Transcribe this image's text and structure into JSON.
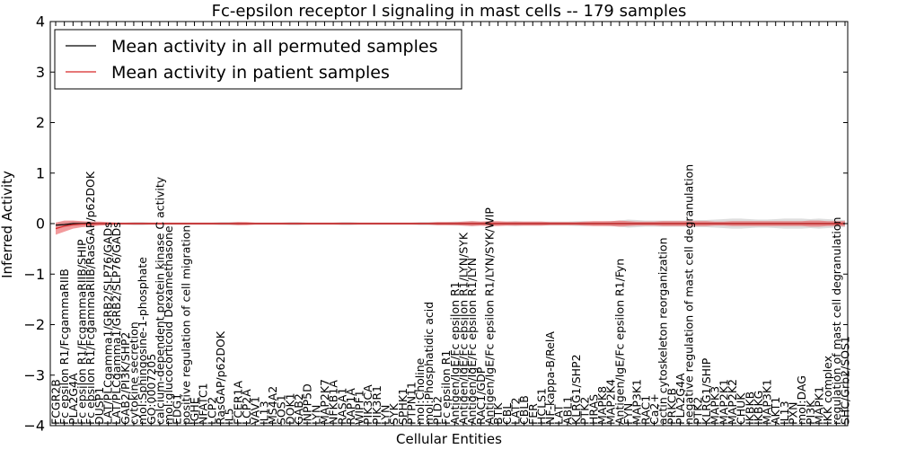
{
  "chart_data": {
    "type": "line",
    "title": "Fc-epsilon receptor I signaling in mast cells -- 179 samples",
    "xlabel": "Cellular Entities",
    "ylabel": "Inferred Activity",
    "ylim": [
      -4,
      4
    ],
    "yticks": [
      -4,
      -3,
      -2,
      -1,
      0,
      1,
      2,
      3,
      4
    ],
    "grid": false,
    "legend_position": "top-left",
    "categories": [
      "FCGR2B",
      "Fc epsilon R1/FcgammaRIIB",
      "PLA2G4A",
      "Fc epsilon R1/FcgammaRIIB/SHIP",
      "Fc epsilon R1/FcgammaRIIB/RasGAP/p62DOK",
      "DUSP1",
      "LAT/PLCgamma1/GRB2/SLP76/GADs",
      "LAT/PLCgamma1/GRB2/SLP76/GADs",
      "GAB2/PI3K/SHP2",
      "cytokine secretion",
      "mol:Sphingosine-1-phosphate",
      "GO:0007205",
      "calcium-dependent protein kinase C activity",
      "mol:glucocorticoid Dexamethasone",
      "EDG1",
      "positive regulation of cell migration",
      "IGHE",
      "NFATC1",
      "LCP2",
      "RasGAP/p62DOK",
      "IL5",
      "FCER1A",
      "LCP2A",
      "VAV1",
      "IL13",
      "MS4A2",
      "SOS1",
      "DOK1",
      "GAB2",
      "INPP5D",
      "LYN",
      "MAP2K7",
      "NFKB1A",
      "RASA1",
      "RAP1A",
      "WIPF1",
      "PIK3CA",
      "PIK3R1",
      "LYN",
      "SYK",
      "SPHK1",
      "PTPN11",
      "mol:Choline",
      "mol:Phosphatidic acid",
      "PLD2",
      "Fc epsilon R1",
      "Antigen/IgE/Fc epsilon R1",
      "Antigen/IgE/Fc epsilon R1/LYN/SYK",
      "Antigen/IgE/Fc epsilon R1/LYN",
      "RAC1/GDP",
      "Antigen/IgE/Fc epsilon R1/LYN/SYK/WIP",
      "BTK",
      "CBL",
      "LAT2",
      "CBLB",
      "FER",
      "HCLS1",
      "NF-kappa-B/RelA",
      "LAT",
      "ABL1",
      "KLRG1/SHP2",
      "PTK2",
      "HRAS",
      "MAPK8",
      "MAP2K4",
      "Antigen/IgE/Fc epsilon R1/Fyn",
      "FYN",
      "MAP3K1",
      "RAC1",
      "Ca2+",
      "actin cytoskeleton reorganization",
      "PRKCB",
      "PLA2G4A",
      "negative regulation of mast cell degranulation",
      "PTK2",
      "KLRG1/SHIP",
      "MAPK3",
      "MAP2K1",
      "MAP2K2",
      "CHUK",
      "IKBKB",
      "IKBKG",
      "MAP3K1",
      "AKT1",
      "IL13",
      "PXN",
      "mol:DAG",
      "PI3K",
      "MAPK1",
      "IKK complex",
      "regulation of mast cell degranulation",
      "SHC/Grb2/SOS1"
    ],
    "series": [
      {
        "name": "Mean activity in all permuted samples",
        "color": "#000000",
        "values": [
          -0.03,
          -0.02,
          0.0,
          0.0,
          0.0,
          0.0,
          0.0,
          0.0,
          0.0,
          0.0,
          0.0,
          0.0,
          0.0,
          0.0,
          0.0,
          0.0,
          0.0,
          0.0,
          0.0,
          0.0,
          0.0,
          0.0,
          0.0,
          0.0,
          0.0,
          0.0,
          0.0,
          0.0,
          0.0,
          0.0,
          0.0,
          0.0,
          0.0,
          0.0,
          0.0,
          0.0,
          0.0,
          0.0,
          0.0,
          0.0,
          0.0,
          0.0,
          0.0,
          0.0,
          0.0,
          0.0,
          0.0,
          0.0,
          0.0,
          0.0,
          0.0,
          0.0,
          0.0,
          0.0,
          0.0,
          0.0,
          0.0,
          0.0,
          0.0,
          0.0,
          0.0,
          0.0,
          0.0,
          0.0,
          0.0,
          0.0,
          0.0,
          0.0,
          0.0,
          0.0,
          0.0,
          0.0,
          0.0,
          0.0,
          0.0,
          0.0,
          0.0,
          0.0,
          0.0,
          0.0,
          0.0,
          0.0,
          0.0,
          0.0,
          0.0,
          0.0,
          0.0,
          0.0,
          0.0,
          0.0,
          0.0,
          0.0
        ]
      },
      {
        "name": "Mean activity in patient samples",
        "color": "#d62728",
        "values": [
          -0.1,
          -0.05,
          -0.02,
          -0.01,
          -0.01,
          0.0,
          0.0,
          0.0,
          0.0,
          0.0,
          0.0,
          0.0,
          0.0,
          0.0,
          0.0,
          0.0,
          0.0,
          0.0,
          0.0,
          0.0,
          0.0,
          0.0,
          0.0,
          0.0,
          0.0,
          0.0,
          0.0,
          0.0,
          0.0,
          0.0,
          0.0,
          0.0,
          0.0,
          0.0,
          0.0,
          0.0,
          0.0,
          0.0,
          0.0,
          0.0,
          0.0,
          0.0,
          0.0,
          0.0,
          0.0,
          0.0,
          0.0,
          0.0,
          0.0,
          0.0,
          0.0,
          0.0,
          0.0,
          0.0,
          0.0,
          0.0,
          0.0,
          0.0,
          0.0,
          0.0,
          0.0,
          0.0,
          0.0,
          0.0,
          0.0,
          0.0,
          0.0,
          0.0,
          0.0,
          0.0,
          0.0,
          0.0,
          0.0,
          0.0,
          0.0,
          0.0,
          0.0,
          0.0,
          0.0,
          0.0,
          0.0,
          0.0,
          0.0,
          0.0,
          0.0,
          0.0,
          0.0,
          0.0,
          0.0,
          0.0,
          0.0,
          0.0
        ]
      }
    ],
    "bands": [
      {
        "name": "permuted spread",
        "color": "#c8c8c8",
        "half_width": [
          0.05,
          0.05,
          0.05,
          0.04,
          0.03,
          0.03,
          0.02,
          0.02,
          0.02,
          0.03,
          0.03,
          0.02,
          0.02,
          0.02,
          0.02,
          0.02,
          0.02,
          0.02,
          0.02,
          0.03,
          0.03,
          0.03,
          0.02,
          0.02,
          0.02,
          0.02,
          0.02,
          0.03,
          0.03,
          0.02,
          0.02,
          0.02,
          0.02,
          0.03,
          0.03,
          0.02,
          0.02,
          0.02,
          0.02,
          0.02,
          0.02,
          0.02,
          0.03,
          0.03,
          0.03,
          0.03,
          0.04,
          0.04,
          0.05,
          0.04,
          0.04,
          0.03,
          0.04,
          0.05,
          0.04,
          0.04,
          0.04,
          0.04,
          0.04,
          0.04,
          0.05,
          0.05,
          0.04,
          0.04,
          0.05,
          0.06,
          0.08,
          0.07,
          0.06,
          0.06,
          0.06,
          0.06,
          0.06,
          0.06,
          0.07,
          0.07,
          0.08,
          0.09,
          0.1,
          0.1,
          0.09,
          0.08,
          0.08,
          0.09,
          0.1,
          0.1,
          0.1,
          0.09,
          0.1,
          0.09,
          0.08,
          0.07
        ]
      },
      {
        "name": "patient spread",
        "color": "#e8474b",
        "half_width": [
          0.12,
          0.11,
          0.08,
          0.06,
          0.05,
          0.04,
          0.03,
          0.02,
          0.02,
          0.02,
          0.02,
          0.02,
          0.02,
          0.02,
          0.02,
          0.02,
          0.02,
          0.02,
          0.02,
          0.02,
          0.02,
          0.03,
          0.03,
          0.02,
          0.02,
          0.02,
          0.02,
          0.02,
          0.02,
          0.02,
          0.02,
          0.02,
          0.02,
          0.02,
          0.02,
          0.02,
          0.02,
          0.02,
          0.02,
          0.02,
          0.02,
          0.02,
          0.02,
          0.02,
          0.03,
          0.03,
          0.03,
          0.04,
          0.05,
          0.04,
          0.05,
          0.05,
          0.04,
          0.04,
          0.04,
          0.04,
          0.04,
          0.03,
          0.03,
          0.03,
          0.03,
          0.04,
          0.05,
          0.05,
          0.05,
          0.06,
          0.05,
          0.04,
          0.04,
          0.04,
          0.05,
          0.05,
          0.05,
          0.05,
          0.05,
          0.05,
          0.04,
          0.04,
          0.05,
          0.05,
          0.05,
          0.05,
          0.05,
          0.05,
          0.05,
          0.05,
          0.05,
          0.06,
          0.06,
          0.05,
          0.05,
          0.05
        ]
      }
    ]
  }
}
